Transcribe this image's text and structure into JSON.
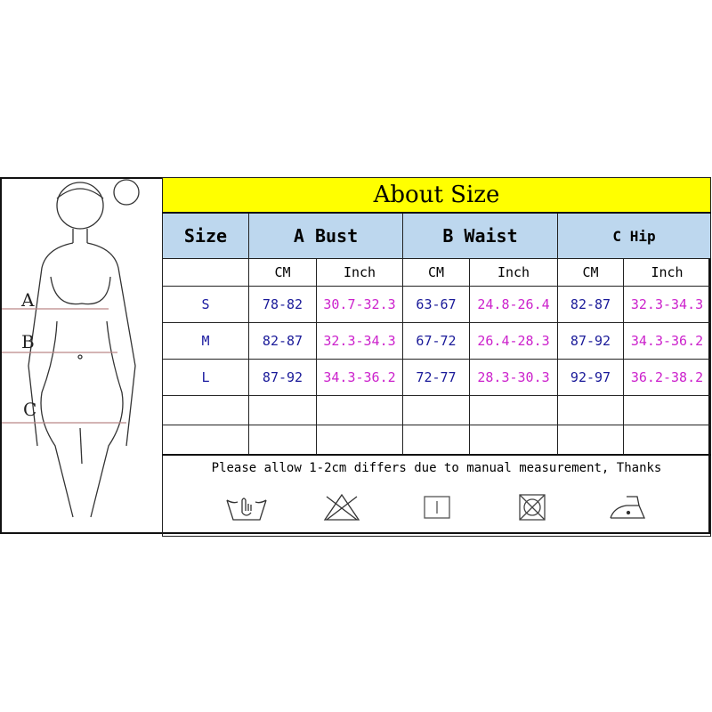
{
  "title": "About Size",
  "headers": {
    "size": "Size",
    "bust": "A Bust",
    "waist": "B Waist",
    "hip": "C Hip"
  },
  "units": {
    "cm": "CM",
    "inch": "Inch"
  },
  "rows": [
    {
      "size": "S",
      "bust_cm": "78-82",
      "bust_in": "30.7-32.3",
      "waist_cm": "63-67",
      "waist_in": "24.8-26.4",
      "hip_cm": "82-87",
      "hip_in": "32.3-34.3"
    },
    {
      "size": "M",
      "bust_cm": "82-87",
      "bust_in": "32.3-34.3",
      "waist_cm": "67-72",
      "waist_in": "26.4-28.3",
      "hip_cm": "87-92",
      "hip_in": "34.3-36.2"
    },
    {
      "size": "L",
      "bust_cm": "87-92",
      "bust_in": "34.3-36.2",
      "waist_cm": "72-77",
      "waist_in": "28.3-30.3",
      "hip_cm": "92-97",
      "hip_in": "36.2-38.2"
    }
  ],
  "note": "Please allow 1-2cm differs due to manual measurement, Thanks",
  "figure_labels": {
    "a": "A",
    "b": "B",
    "c": "C"
  },
  "care_icons": [
    "hand-wash-icon",
    "do-not-bleach-icon",
    "line-dry-icon",
    "do-not-tumble-dry-icon",
    "iron-low-icon"
  ],
  "colors": {
    "title_bg": "#ffff00",
    "header_bg": "#bdd7ee",
    "size_text": "#1a1aa0",
    "inch_text": "#cc22cc"
  }
}
